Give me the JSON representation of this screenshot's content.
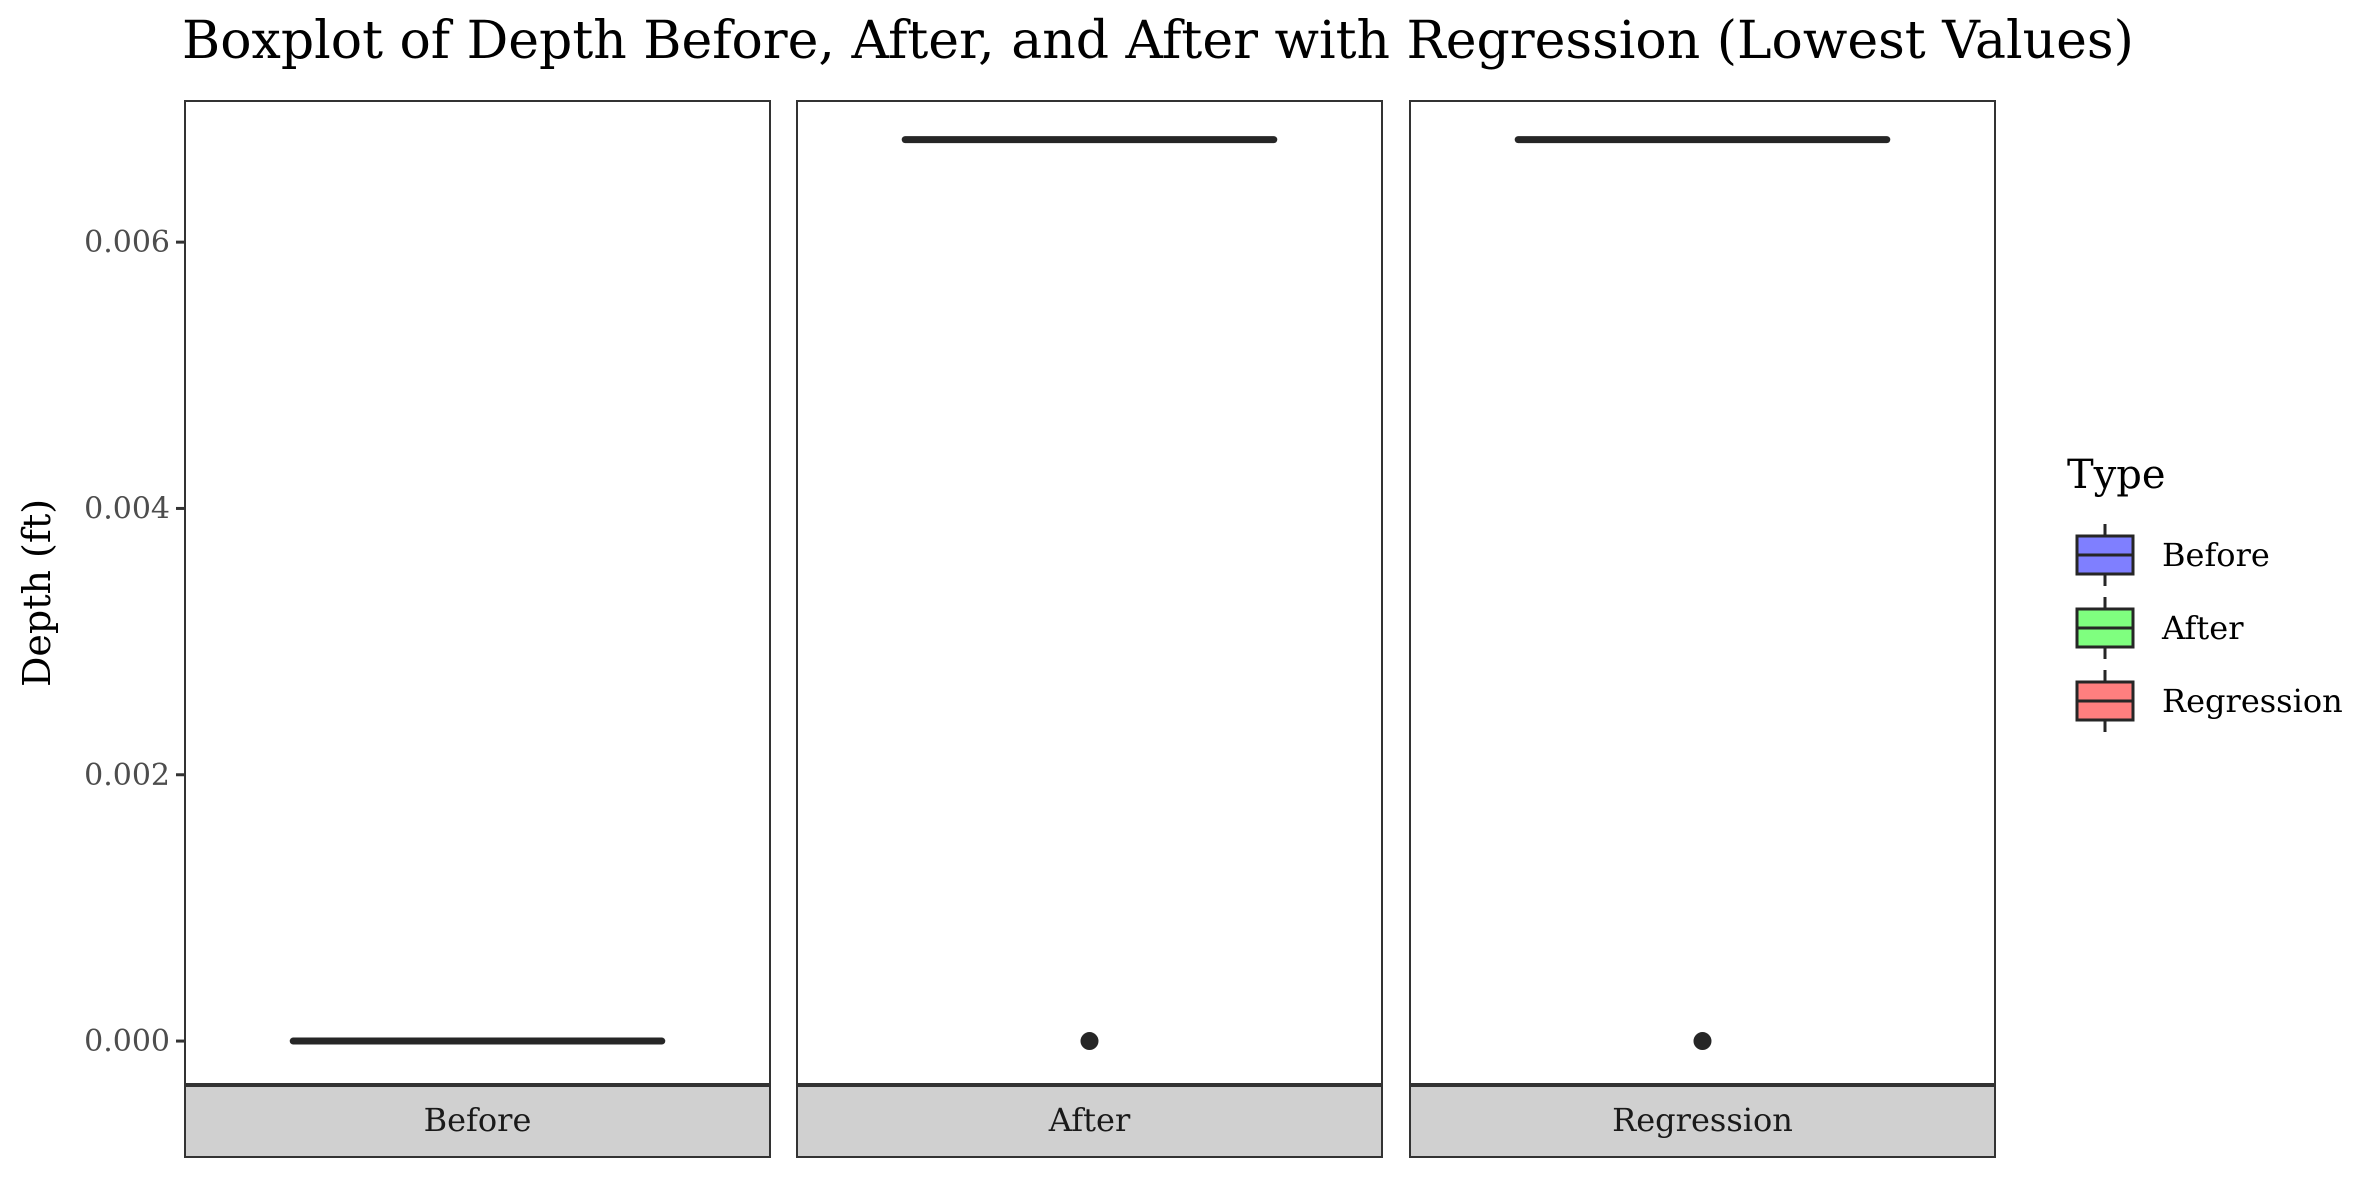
{
  "chart_data": {
    "type": "boxplot",
    "title": "Boxplot of Depth Before, After, and After with Regression (Lowest Values)",
    "xlabel": "",
    "ylabel": "Depth (ft)",
    "ylim": [
      -0.00033,
      0.00706
    ],
    "yticks": [
      0,
      0.002,
      0.004,
      0.006
    ],
    "ytick_labels": [
      "0.000",
      "0.002",
      "0.004",
      "0.006"
    ],
    "grid": false,
    "facets": [
      "Before",
      "After",
      "Regression"
    ],
    "series": [
      {
        "name": "Before",
        "color": "#7F7FFF",
        "min": 0,
        "q1": 0,
        "median": 0,
        "q3": 0,
        "max": 0,
        "outliers": []
      },
      {
        "name": "After",
        "color": "#7FFF7F",
        "min": 0.00677,
        "q1": 0.00677,
        "median": 0.00677,
        "q3": 0.00677,
        "max": 0.00677,
        "outliers": [
          0
        ]
      },
      {
        "name": "Regression",
        "color": "#FF7F7F",
        "min": 0.00677,
        "q1": 0.00677,
        "median": 0.00677,
        "q3": 0.00677,
        "max": 0.00677,
        "outliers": [
          0
        ]
      }
    ],
    "legend": {
      "title": "Type",
      "position": "right",
      "entries": [
        "Before",
        "After",
        "Regression"
      ]
    }
  }
}
